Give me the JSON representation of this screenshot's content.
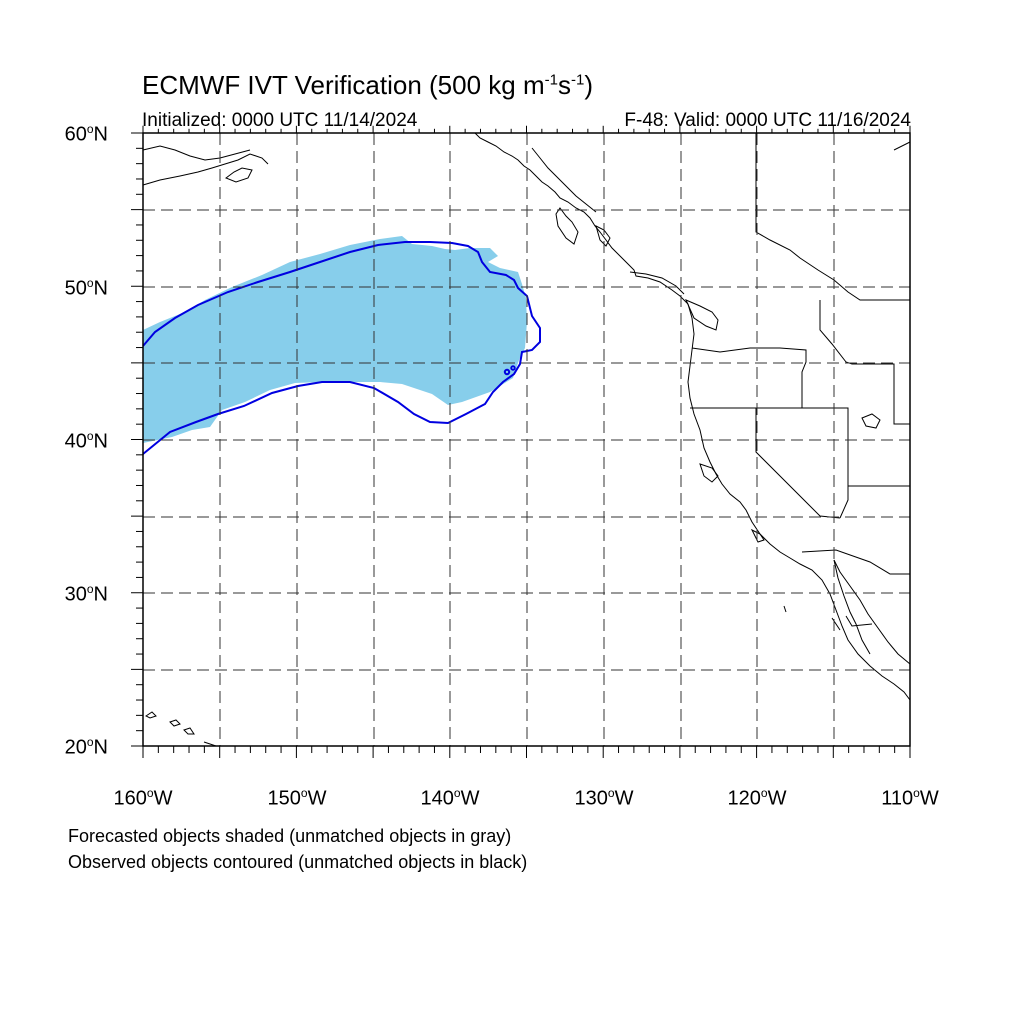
{
  "title": {
    "main": "ECMWF IVT Verification (500 kg m",
    "exp1": "-1",
    "mid": "s",
    "exp2": "-1",
    "end": ")"
  },
  "subtitle": {
    "initialized": "Initialized: 0000 UTC 11/14/2024",
    "valid": "F-48: Valid: 0000 UTC 11/16/2024"
  },
  "lat_labels": [
    {
      "value": "60",
      "deg": "o",
      "hem": "N"
    },
    {
      "value": "50",
      "deg": "o",
      "hem": "N"
    },
    {
      "value": "40",
      "deg": "o",
      "hem": "N"
    },
    {
      "value": "30",
      "deg": "o",
      "hem": "N"
    },
    {
      "value": "20",
      "deg": "o",
      "hem": "N"
    }
  ],
  "lon_labels": [
    {
      "value": "160",
      "deg": "o",
      "hem": "W"
    },
    {
      "value": "150",
      "deg": "o",
      "hem": "W"
    },
    {
      "value": "140",
      "deg": "o",
      "hem": "W"
    },
    {
      "value": "130",
      "deg": "o",
      "hem": "W"
    },
    {
      "value": "120",
      "deg": "o",
      "hem": "W"
    },
    {
      "value": "110",
      "deg": "o",
      "hem": "W"
    }
  ],
  "legend": {
    "line1": "Forecasted objects shaded (unmatched objects in gray)",
    "line2": "Observed objects contoured (unmatched objects in black)"
  },
  "colors": {
    "forecast_fill": "#87ceeb",
    "observed_contour": "#0000e0",
    "coastline": "#000000",
    "grid": "#333333"
  }
}
